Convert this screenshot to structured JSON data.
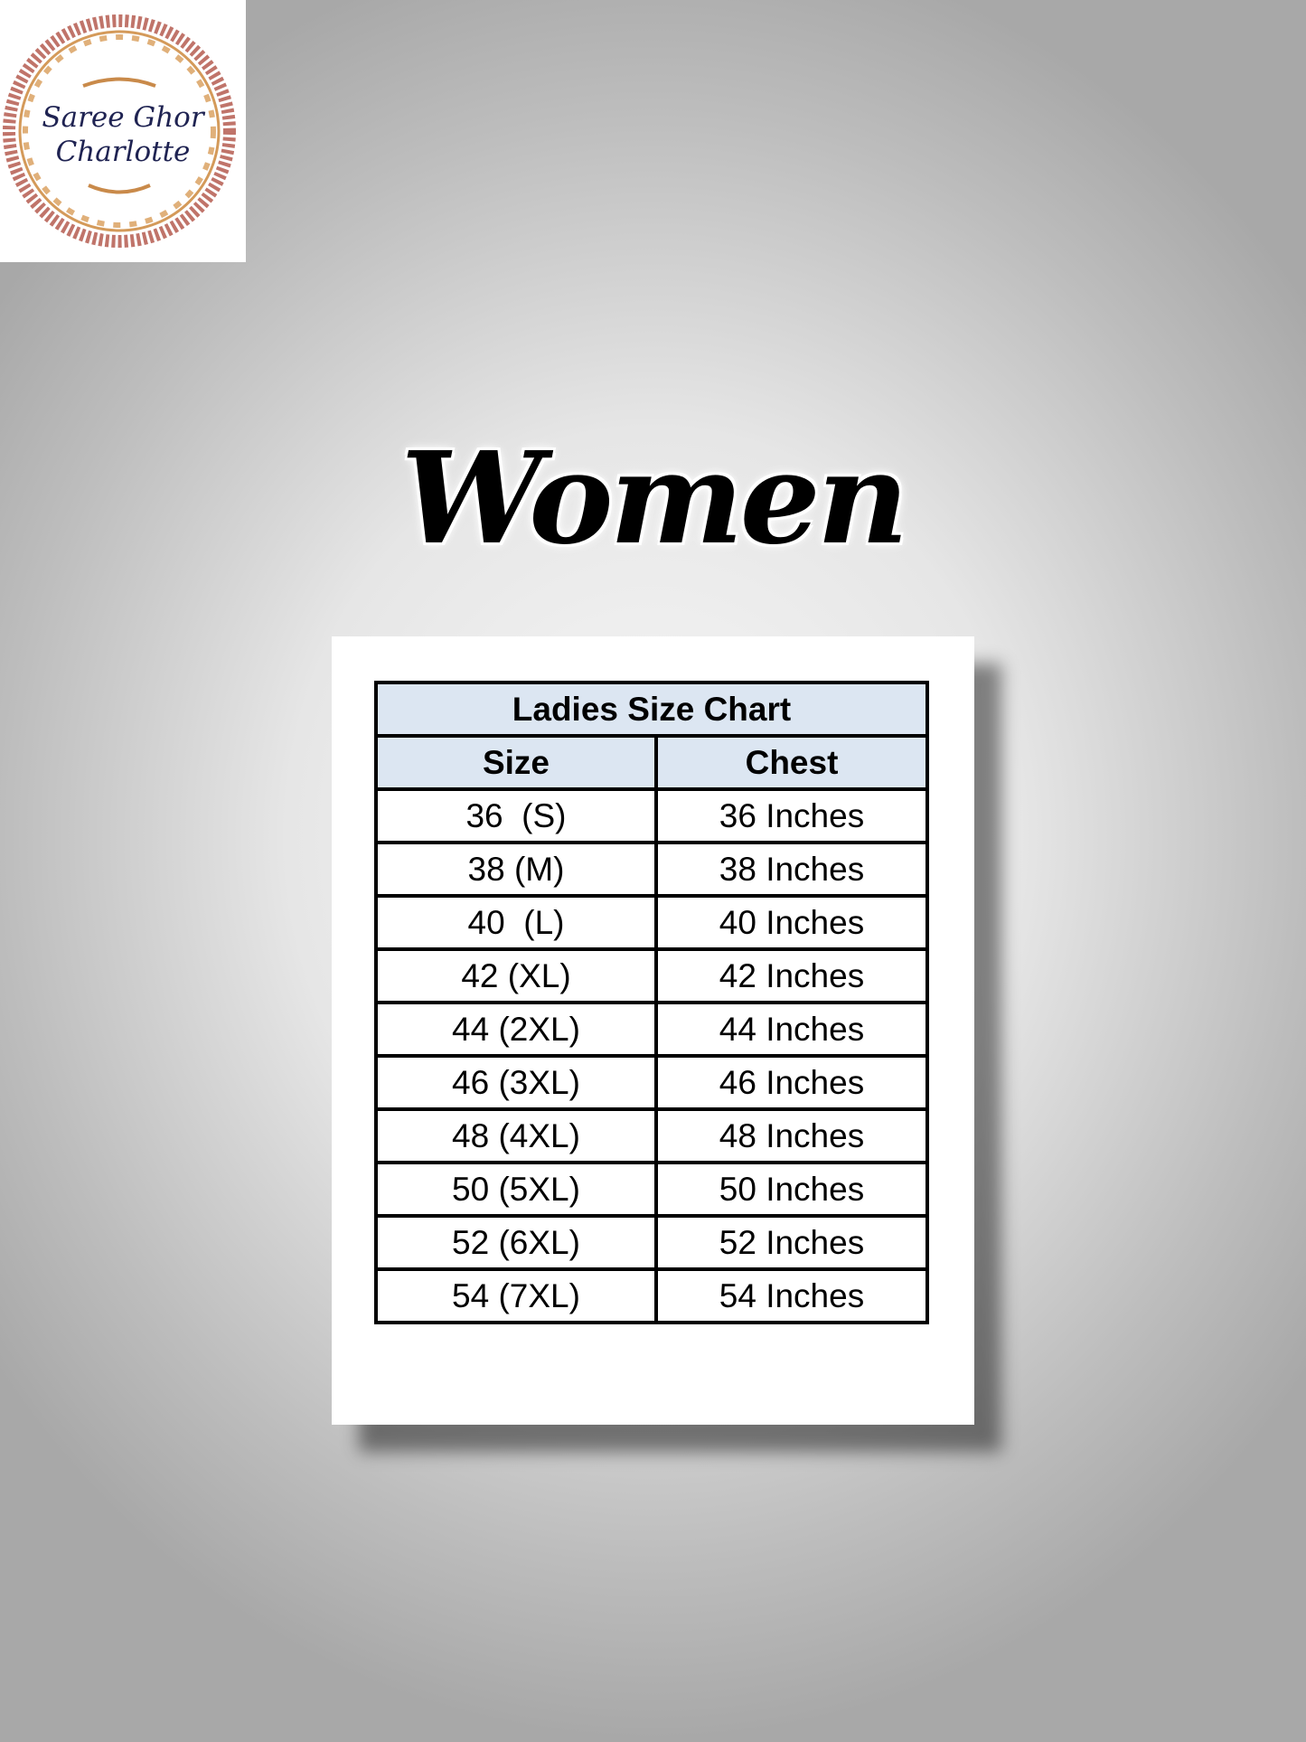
{
  "logo": {
    "line1": "Saree Ghor",
    "line2": "Charlotte"
  },
  "heading": "Women",
  "table": {
    "title": "Ladies Size Chart",
    "headers": [
      "Size",
      "Chest"
    ],
    "rows": [
      [
        "36  (S)",
        "36 Inches"
      ],
      [
        "38 (M)",
        "38 Inches"
      ],
      [
        "40  (L)",
        "40 Inches"
      ],
      [
        "42 (XL)",
        "42 Inches"
      ],
      [
        "44 (2XL)",
        "44 Inches"
      ],
      [
        "46 (3XL)",
        "46 Inches"
      ],
      [
        "48 (4XL)",
        "48 Inches"
      ],
      [
        "50 (5XL)",
        "50 Inches"
      ],
      [
        "52 (6XL)",
        "52 Inches"
      ],
      [
        "54 (7XL)",
        "54 Inches"
      ]
    ]
  },
  "colors": {
    "header_bg": "#dce6f2",
    "logo_text": "#1f2352",
    "logo_border": "#b5655a"
  }
}
